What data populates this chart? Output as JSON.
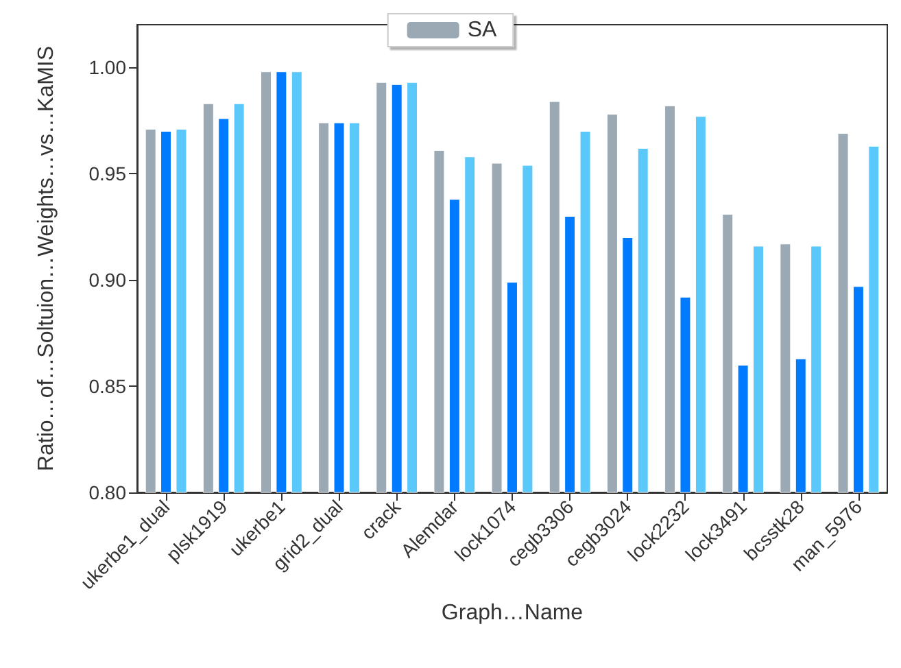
{
  "chart_data": {
    "type": "bar",
    "xlabel": "Graph…Name",
    "ylabel": "Ratio…of…Soltuion…Weights…vs…KaMIS",
    "categories": [
      "ukerbe1_dual",
      "plsk1919",
      "ukerbe1",
      "grid2_dual",
      "crack",
      "Alemdar",
      "lock1074",
      "cegb3306",
      "cegb3024",
      "lock2232",
      "lock3491",
      "bcsstk28",
      "man_5976"
    ],
    "series": [
      {
        "name": "SA",
        "color": "#9aa9b4",
        "values": [
          0.971,
          0.983,
          0.998,
          0.974,
          0.993,
          0.961,
          0.955,
          0.984,
          0.978,
          0.982,
          0.931,
          0.917,
          0.969
        ]
      },
      {
        "color": "#007bff",
        "values": [
          0.97,
          0.976,
          0.998,
          0.974,
          0.992,
          0.938,
          0.899,
          0.93,
          0.92,
          0.892,
          0.86,
          0.863,
          0.897
        ]
      },
      {
        "color": "#5ac8fa",
        "values": [
          0.971,
          0.983,
          0.998,
          0.974,
          0.993,
          0.958,
          0.954,
          0.97,
          0.962,
          0.977,
          0.916,
          0.916,
          0.963
        ]
      }
    ],
    "ylim": [
      0.8,
      1.02
    ],
    "yticks": [
      {
        "value": 0.8,
        "label": "0.80"
      },
      {
        "value": 0.85,
        "label": "0.85"
      },
      {
        "value": 0.9,
        "label": "0.90"
      },
      {
        "value": 0.95,
        "label": "0.95"
      },
      {
        "value": 1.0,
        "label": "1.00"
      }
    ],
    "grid": false,
    "legend": "top"
  }
}
